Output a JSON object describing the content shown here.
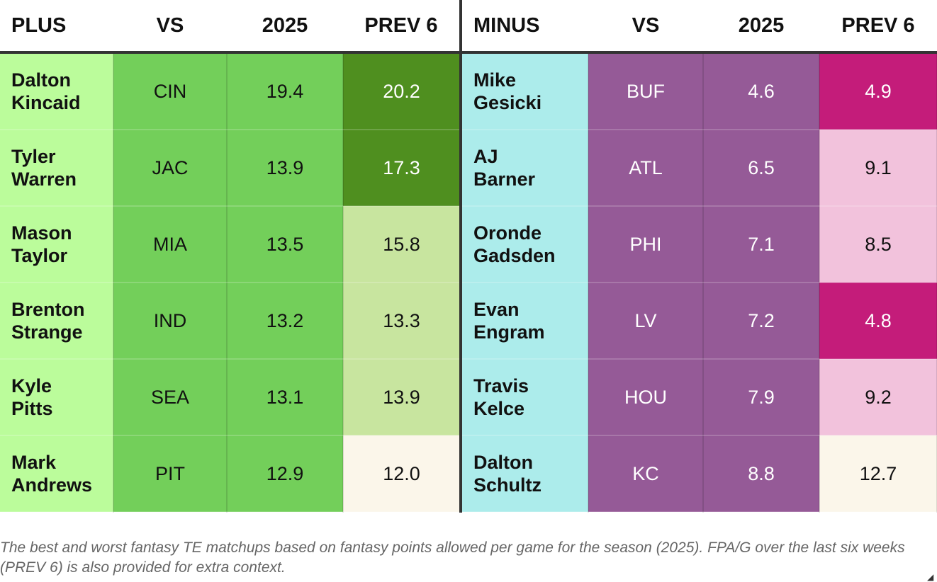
{
  "headers": {
    "plus": "PLUS",
    "vs_left": "VS",
    "season_left": "2025",
    "prev_left": "PREV 6",
    "minus": "MINUS",
    "vs_right": "VS",
    "season_right": "2025",
    "prev_right": "PREV 6"
  },
  "rows": [
    {
      "plus": {
        "first": "Dalton",
        "last": "Kincaid",
        "opp": "CIN",
        "season": "19.4",
        "prev6": "20.2",
        "prev6_bg": "#4f8f1f",
        "prev6_fg": "#ffffff"
      },
      "minus": {
        "first": "Mike",
        "last": "Gesicki",
        "opp": "BUF",
        "season": "4.6",
        "prev6": "4.9",
        "prev6_bg": "#c41c7a",
        "prev6_fg": "#ffffff"
      }
    },
    {
      "plus": {
        "first": "Tyler",
        "last": "Warren",
        "opp": "JAC",
        "season": "13.9",
        "prev6": "17.3",
        "prev6_bg": "#4f8f1f",
        "prev6_fg": "#ffffff"
      },
      "minus": {
        "first": "AJ",
        "last": "Barner",
        "opp": "ATL",
        "season": "6.5",
        "prev6": "9.1",
        "prev6_bg": "#f2c2dc",
        "prev6_fg": "#111111"
      }
    },
    {
      "plus": {
        "first": "Mason",
        "last": "Taylor",
        "opp": "MIA",
        "season": "13.5",
        "prev6": "15.8",
        "prev6_bg": "#c8e59f",
        "prev6_fg": "#111111"
      },
      "minus": {
        "first": "Oronde",
        "last": "Gadsden",
        "opp": "PHI",
        "season": "7.1",
        "prev6": "8.5",
        "prev6_bg": "#f2c2dc",
        "prev6_fg": "#111111"
      }
    },
    {
      "plus": {
        "first": "Brenton",
        "last": "Strange",
        "opp": "IND",
        "season": "13.2",
        "prev6": "13.3",
        "prev6_bg": "#c8e59f",
        "prev6_fg": "#111111"
      },
      "minus": {
        "first": "Evan",
        "last": "Engram",
        "opp": "LV",
        "season": "7.2",
        "prev6": "4.8",
        "prev6_bg": "#c41c7a",
        "prev6_fg": "#ffffff"
      }
    },
    {
      "plus": {
        "first": "Kyle",
        "last": "Pitts",
        "opp": "SEA",
        "season": "13.1",
        "prev6": "13.9",
        "prev6_bg": "#c8e59f",
        "prev6_fg": "#111111"
      },
      "minus": {
        "first": "Travis",
        "last": "Kelce",
        "opp": "HOU",
        "season": "7.9",
        "prev6": "9.2",
        "prev6_bg": "#f2c2dc",
        "prev6_fg": "#111111"
      }
    },
    {
      "plus": {
        "first": "Mark",
        "last": "Andrews",
        "opp": "PIT",
        "season": "12.9",
        "prev6": "12.0",
        "prev6_bg": "#fbf6ea",
        "prev6_fg": "#111111"
      },
      "minus": {
        "first": "Dalton",
        "last": "Schultz",
        "opp": "KC",
        "season": "8.8",
        "prev6": "12.7",
        "prev6_bg": "#fbf6ea",
        "prev6_fg": "#111111"
      }
    }
  ],
  "caption": "The best and worst fantasy TE matchups based on fantasy points allowed per game for the season (2025). FPA/G over the last six weeks (PREV 6) is also provided for extra context.",
  "icons": {
    "resize": "resize-handle-icon"
  }
}
